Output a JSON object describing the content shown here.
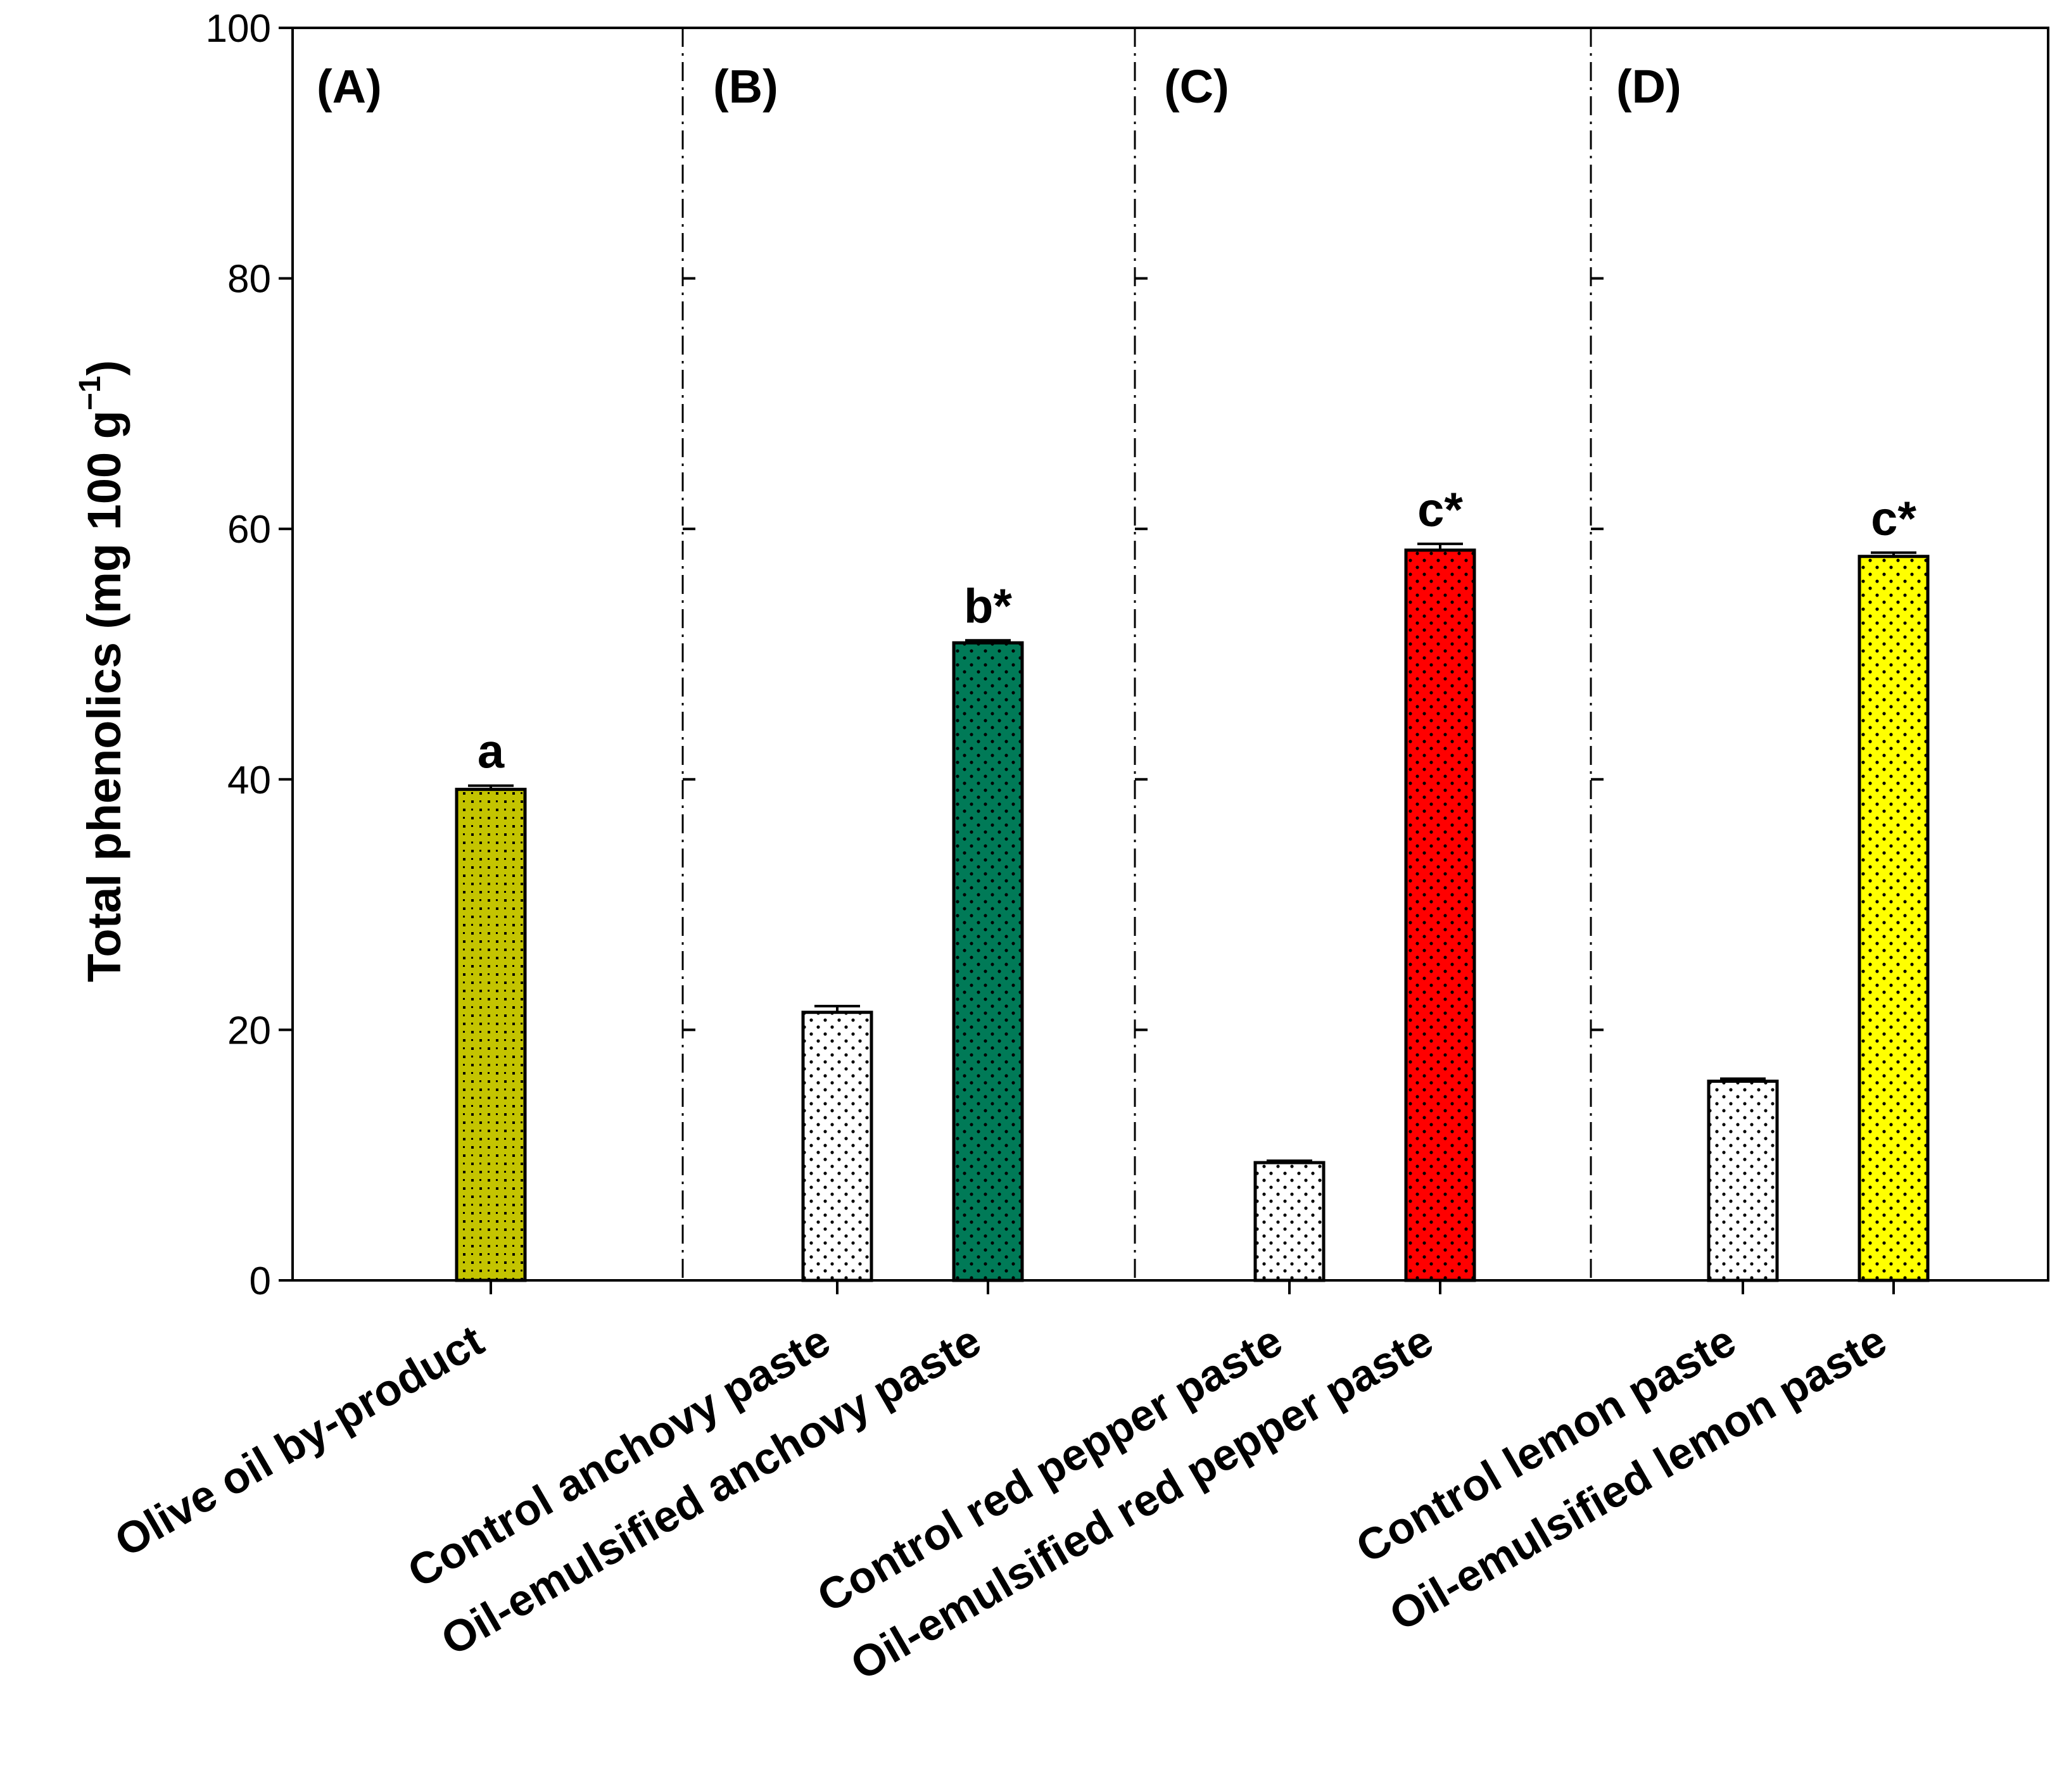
{
  "chart_data": {
    "type": "bar",
    "ylabel": "Total phenolics (mg 100 g−1)",
    "ylabel_parts": {
      "main": "Total phenolics (mg 100 g",
      "sup": "−1",
      "close": ")"
    },
    "ylim": [
      0,
      100
    ],
    "yticks": [
      "0",
      "20",
      "40",
      "60",
      "80",
      "100"
    ],
    "categories": [
      "Olive oil by-product",
      "Control anchovy paste",
      "Oil-emulsified anchovy paste",
      "Control red pepper paste",
      "Oil-emulsified red pepper paste",
      "Control lemon paste",
      "Oil-emulsified lemon paste"
    ],
    "values": [
      39.2,
      21.4,
      50.9,
      9.4,
      58.3,
      15.9,
      57.8
    ],
    "errors": [
      0.3,
      0.5,
      0.2,
      0.15,
      0.5,
      0.2,
      0.3
    ],
    "significance": [
      "a",
      "",
      "b*",
      "",
      "c*",
      "",
      "c*"
    ],
    "bar_colors": [
      "#c4c400",
      "#ffffff",
      "#007a57",
      "#ffffff",
      "#ff0000",
      "#ffffff",
      "#ffff00"
    ],
    "panels": [
      {
        "label": "(A)",
        "categories": [
          0
        ]
      },
      {
        "label": "(B)",
        "categories": [
          1,
          2
        ]
      },
      {
        "label": "(C)",
        "categories": [
          3,
          4
        ]
      },
      {
        "label": "(D)",
        "categories": [
          5,
          6
        ]
      }
    ],
    "grid": false
  }
}
